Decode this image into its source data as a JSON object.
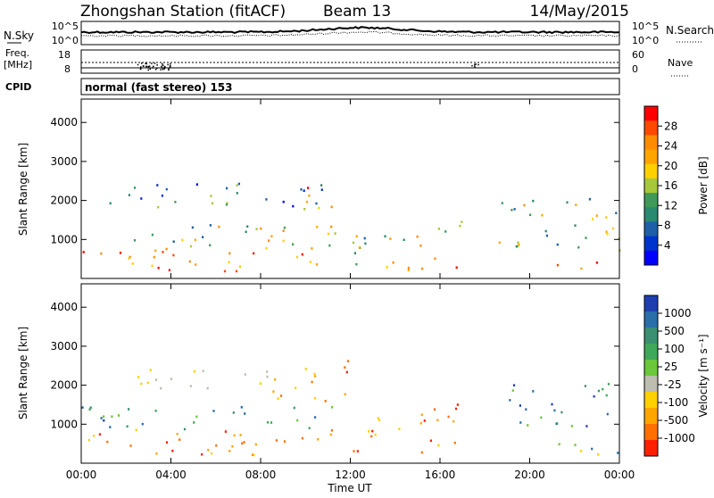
{
  "header": {
    "title": "Zhongshan Station (fitACF)",
    "beam": "Beam 13",
    "date": "14/May/2015"
  },
  "noise_panel": {
    "left_label": "N.Sky",
    "right_label": "N.Search",
    "left_ticks": [
      "10^5",
      "10^0"
    ],
    "right_ticks": [
      "10^5",
      "10^0"
    ]
  },
  "freq_panel": {
    "left_label_line1": "Freq.",
    "left_label_line2": "[MHz]",
    "left_ticks": [
      "18",
      "8"
    ],
    "right_label": "Nave",
    "right_ticks": [
      "60",
      "0"
    ]
  },
  "cpid_panel": {
    "label": "CPID",
    "text": "normal (fast stereo) 153"
  },
  "x_axis": {
    "ticks": [
      "00:00",
      "04:00",
      "08:00",
      "12:00",
      "16:00",
      "20:00",
      "00:00"
    ],
    "label": "Time UT"
  },
  "power_colorbar": {
    "label": "Power [dB]",
    "ticks": [
      "28",
      "24",
      "20",
      "16",
      "12",
      "8",
      "4"
    ],
    "colors": [
      "#ff0000",
      "#ff4800",
      "#ff8c00",
      "#ffa500",
      "#ffd000",
      "#a8c83c",
      "#3f9a5a",
      "#2a8a70",
      "#1f5fa8",
      "#0033cc",
      "#0000ff"
    ]
  },
  "velocity_colorbar": {
    "label": "Velocity [m s⁻¹]",
    "ticks": [
      "1000",
      "500",
      "100",
      "25",
      "-25",
      "-100",
      "-500",
      "-1000"
    ],
    "colors": [
      "#1f3fb0",
      "#2a6fa8",
      "#3a9070",
      "#3fa85a",
      "#6ac83a",
      "#bdbdb0",
      "#ffd000",
      "#ffa500",
      "#ff7000",
      "#ff2000"
    ]
  },
  "chart_data": [
    {
      "type": "heatmap",
      "name_hint": "power",
      "ylabel": "Slant Range [km]",
      "y_ticks": [
        1000,
        2000,
        3000,
        4000
      ],
      "ylim": [
        0,
        4600
      ],
      "xlim_hours": [
        0,
        24
      ],
      "grid": false,
      "regions": [
        {
          "t0": 0.0,
          "t1": 11.5,
          "r0": 200,
          "r1": 800,
          "level": "high"
        },
        {
          "t0": 0.0,
          "t1": 11.5,
          "r0": 800,
          "r1": 1400,
          "level": "mid"
        },
        {
          "t0": 1.0,
          "t1": 11.0,
          "r0": 1800,
          "r1": 2500,
          "level": "low"
        },
        {
          "t0": 10.0,
          "t1": 12.0,
          "r0": 1800,
          "r1": 2400,
          "level": "high"
        },
        {
          "t0": 12.0,
          "t1": 15.5,
          "r0": 300,
          "r1": 1400,
          "level": "mid"
        },
        {
          "t0": 13.5,
          "t1": 17.0,
          "r0": 200,
          "r1": 600,
          "level": "high"
        },
        {
          "t0": 15.5,
          "t1": 17.0,
          "r0": 1200,
          "r1": 1900,
          "level": "mid"
        },
        {
          "t0": 18.5,
          "t1": 23.8,
          "r0": 800,
          "r1": 2100,
          "level": "mid"
        },
        {
          "t0": 21.0,
          "t1": 23.5,
          "r0": 200,
          "r1": 500,
          "level": "high"
        },
        {
          "t0": 23.5,
          "t1": 24.0,
          "r0": 500,
          "r1": 2200,
          "level": "mid"
        }
      ]
    },
    {
      "type": "heatmap",
      "name_hint": "velocity",
      "ylabel": "Slant Range [km]",
      "y_ticks": [
        1000,
        2000,
        3000,
        4000
      ],
      "ylim": [
        0,
        4600
      ],
      "xlim_hours": [
        0,
        24
      ],
      "grid": false,
      "regions": [
        {
          "t0": 0.0,
          "t1": 11.5,
          "r0": 200,
          "r1": 900,
          "level": "neg"
        },
        {
          "t0": 0.0,
          "t1": 11.5,
          "r0": 900,
          "r1": 1500,
          "level": "pos"
        },
        {
          "t0": 2.0,
          "t1": 8.5,
          "r0": 1900,
          "r1": 2500,
          "level": "zero"
        },
        {
          "t0": 8.5,
          "t1": 12.0,
          "r0": 1600,
          "r1": 2700,
          "level": "neg"
        },
        {
          "t0": 12.0,
          "t1": 17.0,
          "r0": 300,
          "r1": 1300,
          "level": "neg"
        },
        {
          "t0": 15.5,
          "t1": 17.0,
          "r0": 1400,
          "r1": 2000,
          "level": "neg"
        },
        {
          "t0": 19.0,
          "t1": 23.5,
          "r0": 800,
          "r1": 2100,
          "level": "pos"
        },
        {
          "t0": 21.0,
          "t1": 24.0,
          "r0": 200,
          "r1": 700,
          "level": "mixed"
        }
      ]
    }
  ]
}
